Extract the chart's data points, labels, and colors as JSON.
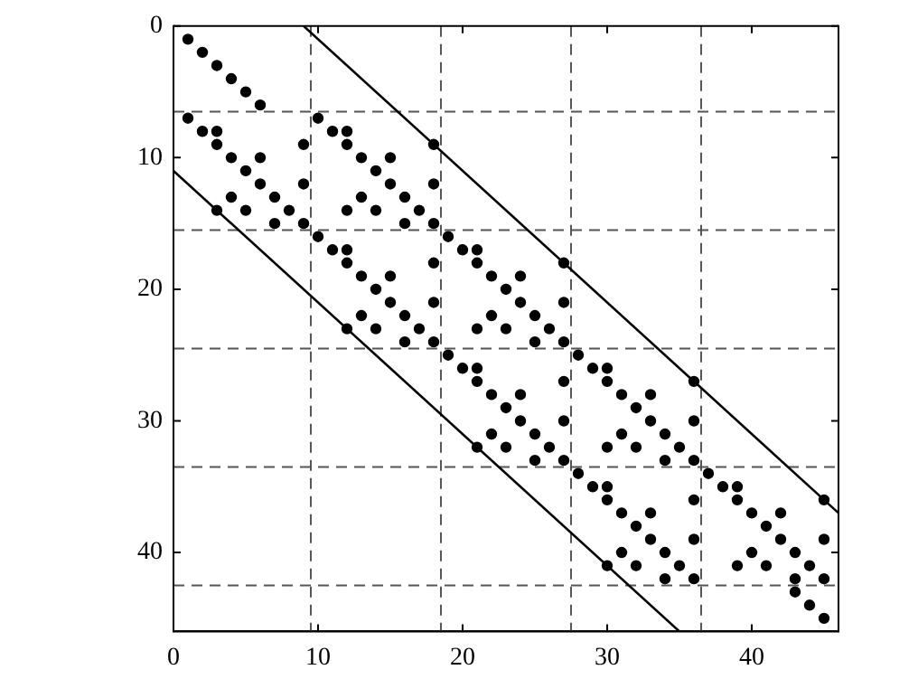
{
  "chart_data": {
    "type": "scatter",
    "xlim": [
      0,
      46
    ],
    "ylim": [
      46,
      0
    ],
    "xticks": [
      0,
      10,
      20,
      30,
      40
    ],
    "yticks": [
      0,
      10,
      20,
      30,
      40
    ],
    "series": [
      {
        "marker": "circle",
        "color": "#000000",
        "x": [
          1,
          2,
          3,
          4,
          5,
          6,
          1,
          10,
          2,
          3,
          11,
          12,
          3,
          9,
          12,
          18,
          4,
          6,
          13,
          15,
          5,
          14,
          6,
          9,
          15,
          18,
          4,
          7,
          13,
          16,
          3,
          5,
          8,
          12,
          14,
          17,
          7,
          9,
          16,
          18,
          10,
          19,
          11,
          12,
          20,
          21,
          12,
          18,
          21,
          27,
          13,
          15,
          22,
          24,
          14,
          23,
          15,
          18,
          24,
          27,
          13,
          16,
          22,
          25,
          12,
          14,
          17,
          21,
          23,
          26,
          16,
          18,
          25,
          27,
          19,
          28,
          20,
          21,
          29,
          30,
          21,
          27,
          30,
          36,
          22,
          24,
          31,
          33,
          23,
          32,
          24,
          27,
          33,
          36,
          22,
          25,
          31,
          34,
          21,
          23,
          26,
          30,
          32,
          35,
          25,
          27,
          34,
          36,
          28,
          37,
          29,
          30,
          38,
          39,
          30,
          36,
          39,
          45,
          31,
          33,
          40,
          42,
          32,
          41,
          33,
          36,
          42,
          45,
          31,
          34,
          40,
          43,
          30,
          32,
          35,
          39,
          41,
          44,
          34,
          36,
          43,
          45,
          43,
          44,
          45
        ],
        "values": [
          1,
          2,
          3,
          4,
          5,
          6,
          7,
          7,
          8,
          8,
          8,
          8,
          9,
          9,
          9,
          9,
          10,
          10,
          10,
          10,
          11,
          11,
          12,
          12,
          12,
          12,
          13,
          13,
          13,
          13,
          14,
          14,
          14,
          14,
          14,
          14,
          15,
          15,
          15,
          15,
          16,
          16,
          17,
          17,
          17,
          17,
          18,
          18,
          18,
          18,
          19,
          19,
          19,
          19,
          20,
          20,
          21,
          21,
          21,
          21,
          22,
          22,
          22,
          22,
          23,
          23,
          23,
          23,
          23,
          23,
          24,
          24,
          24,
          24,
          25,
          25,
          26,
          26,
          26,
          26,
          27,
          27,
          27,
          27,
          28,
          28,
          28,
          28,
          29,
          29,
          30,
          30,
          30,
          30,
          31,
          31,
          31,
          31,
          32,
          32,
          32,
          32,
          32,
          32,
          33,
          33,
          33,
          33,
          34,
          34,
          35,
          35,
          35,
          35,
          36,
          36,
          36,
          36,
          37,
          37,
          37,
          37,
          38,
          38,
          39,
          39,
          39,
          39,
          40,
          40,
          40,
          40,
          41,
          41,
          41,
          41,
          41,
          41,
          42,
          42,
          42,
          42,
          43,
          44,
          45
        ]
      },
      {
        "type": "line",
        "color": "#000000",
        "x": [
          9,
          46
        ],
        "values": [
          0,
          37
        ]
      },
      {
        "type": "line",
        "color": "#000000",
        "x": [
          0,
          35
        ],
        "values": [
          11,
          46
        ]
      }
    ],
    "ref_lines": [
      {
        "axis": "x",
        "value": 9.5,
        "color": "#555555",
        "line_style": "dashed"
      },
      {
        "axis": "x",
        "value": 18.5,
        "color": "#555555",
        "line_style": "dashed"
      },
      {
        "axis": "x",
        "value": 27.5,
        "color": "#555555",
        "line_style": "dashed"
      },
      {
        "axis": "x",
        "value": 36.5,
        "color": "#555555",
        "line_style": "dashed"
      },
      {
        "axis": "y",
        "value": 6.5,
        "color": "#555555",
        "line_style": "dashed"
      },
      {
        "axis": "y",
        "value": 15.5,
        "color": "#555555",
        "line_style": "dashed"
      },
      {
        "axis": "y",
        "value": 24.5,
        "color": "#555555",
        "line_style": "dashed"
      },
      {
        "axis": "y",
        "value": 33.5,
        "color": "#555555",
        "line_style": "dashed"
      },
      {
        "axis": "y",
        "value": 42.5,
        "color": "#555555",
        "line_style": "dashed"
      }
    ]
  }
}
